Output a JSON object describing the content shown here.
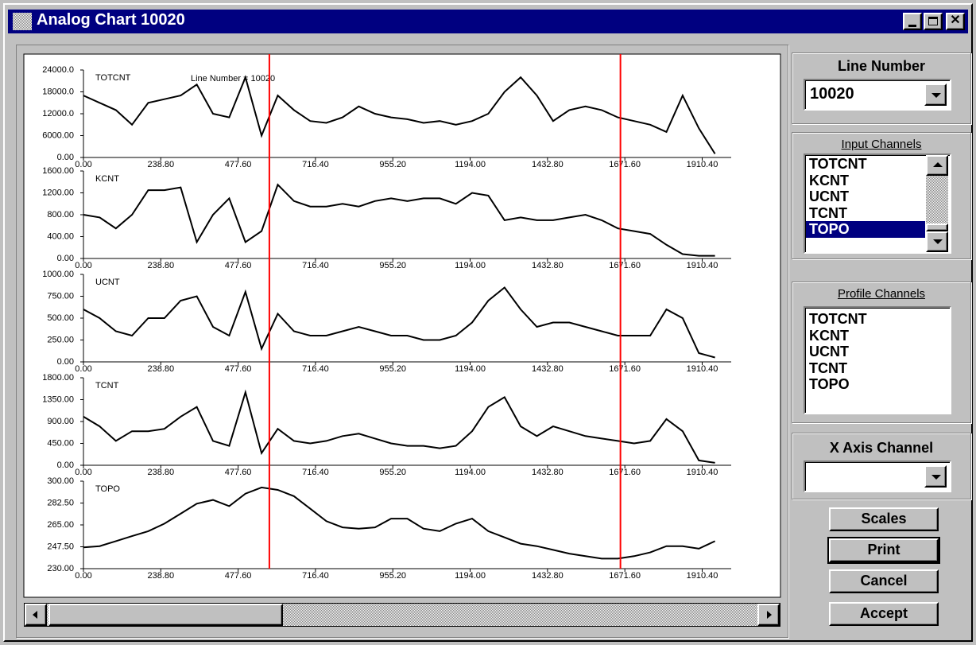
{
  "window": {
    "title": "Analog Chart 10020"
  },
  "annotation": "Line Number = 10020",
  "cursor_x": [
    574,
    1658
  ],
  "cursor_color": "#ff0000",
  "line_number": {
    "label": "Line Number",
    "value": "10020"
  },
  "input_channels": {
    "label": "Input Channels",
    "items": [
      "TOTCNT",
      "KCNT",
      "UCNT",
      "TCNT",
      "TOPO"
    ],
    "selected": 4
  },
  "profile_channels": {
    "label": "Profile Channels",
    "items": [
      "TOTCNT",
      "KCNT",
      "UCNT",
      "TCNT",
      "TOPO"
    ]
  },
  "x_axis_channel": {
    "label": "X Axis Channel"
  },
  "buttons": [
    "Scales",
    "Print",
    "Cancel",
    "Accept"
  ],
  "chart_data": [
    {
      "type": "line",
      "title": "TOTCNT",
      "color": "#000000",
      "x": [
        0,
        50,
        100,
        150,
        200,
        250,
        300,
        350,
        400,
        450,
        500,
        550,
        600,
        650,
        700,
        750,
        800,
        850,
        900,
        950,
        1000,
        1050,
        1100,
        1150,
        1200,
        1250,
        1300,
        1350,
        1400,
        1450,
        1500,
        1550,
        1600,
        1650,
        1700,
        1750,
        1800,
        1850,
        1900,
        1950
      ],
      "values": [
        17000,
        15000,
        13000,
        9000,
        15000,
        16000,
        17000,
        20000,
        12000,
        11000,
        22000,
        6000,
        17000,
        13000,
        10000,
        9500,
        11000,
        14000,
        12000,
        11000,
        10500,
        9500,
        10000,
        9000,
        10000,
        12000,
        18000,
        22000,
        17000,
        10000,
        13000,
        14000,
        13000,
        11000,
        10000,
        9000,
        7000,
        17000,
        8000,
        1000
      ],
      "xlim": [
        0,
        2000
      ],
      "ylim": [
        0,
        24000
      ],
      "xticks": [
        {
          "value": 0,
          "label": "0.00"
        },
        {
          "value": 238.8,
          "label": "238.80"
        },
        {
          "value": 477.6,
          "label": "477.60"
        },
        {
          "value": 716.4,
          "label": "716.40"
        },
        {
          "value": 955.2,
          "label": "955.20"
        },
        {
          "value": 1194,
          "label": "1194.00"
        },
        {
          "value": 1432.8,
          "label": "1432.80"
        },
        {
          "value": 1671.6,
          "label": "1671.60"
        },
        {
          "value": 1910.4,
          "label": "1910.40"
        }
      ],
      "yticks": [
        {
          "value": 0,
          "label": "0.00"
        },
        {
          "value": 6000,
          "label": "6000.00"
        },
        {
          "value": 12000,
          "label": "12000.0"
        },
        {
          "value": 18000,
          "label": "18000.0"
        },
        {
          "value": 24000,
          "label": "24000.0"
        }
      ]
    },
    {
      "type": "line",
      "title": "KCNT",
      "color": "#000000",
      "x": [
        0,
        50,
        100,
        150,
        200,
        250,
        300,
        350,
        400,
        450,
        500,
        550,
        600,
        650,
        700,
        750,
        800,
        850,
        900,
        950,
        1000,
        1050,
        1100,
        1150,
        1200,
        1250,
        1300,
        1350,
        1400,
        1450,
        1500,
        1550,
        1600,
        1650,
        1700,
        1750,
        1800,
        1850,
        1900,
        1950
      ],
      "values": [
        800,
        750,
        550,
        800,
        1250,
        1250,
        1300,
        300,
        800,
        1100,
        300,
        500,
        1350,
        1050,
        950,
        950,
        1000,
        950,
        1050,
        1100,
        1050,
        1100,
        1100,
        1000,
        1200,
        1150,
        700,
        750,
        700,
        700,
        750,
        800,
        700,
        550,
        500,
        450,
        250,
        80,
        50,
        50
      ],
      "xlim": [
        0,
        2000
      ],
      "ylim": [
        0,
        1600
      ],
      "xticks": [
        {
          "value": 0,
          "label": "0.00"
        },
        {
          "value": 238.8,
          "label": "238.80"
        },
        {
          "value": 477.6,
          "label": "477.60"
        },
        {
          "value": 716.4,
          "label": "716.40"
        },
        {
          "value": 955.2,
          "label": "955.20"
        },
        {
          "value": 1194,
          "label": "1194.00"
        },
        {
          "value": 1432.8,
          "label": "1432.80"
        },
        {
          "value": 1671.6,
          "label": "1671.60"
        },
        {
          "value": 1910.4,
          "label": "1910.40"
        }
      ],
      "yticks": [
        {
          "value": 0,
          "label": "0.00"
        },
        {
          "value": 400,
          "label": "400.00"
        },
        {
          "value": 800,
          "label": "800.00"
        },
        {
          "value": 1200,
          "label": "1200.00"
        },
        {
          "value": 1600,
          "label": "1600.00"
        }
      ]
    },
    {
      "type": "line",
      "title": "UCNT",
      "color": "#000000",
      "x": [
        0,
        50,
        100,
        150,
        200,
        250,
        300,
        350,
        400,
        450,
        500,
        550,
        600,
        650,
        700,
        750,
        800,
        850,
        900,
        950,
        1000,
        1050,
        1100,
        1150,
        1200,
        1250,
        1300,
        1350,
        1400,
        1450,
        1500,
        1550,
        1600,
        1650,
        1700,
        1750,
        1800,
        1850,
        1900,
        1950
      ],
      "values": [
        600,
        500,
        350,
        300,
        500,
        500,
        700,
        750,
        400,
        300,
        800,
        150,
        550,
        350,
        300,
        300,
        350,
        400,
        350,
        300,
        300,
        250,
        250,
        300,
        450,
        700,
        850,
        600,
        400,
        450,
        450,
        400,
        350,
        300,
        300,
        300,
        600,
        500,
        100,
        50
      ],
      "xlim": [
        0,
        2000
      ],
      "ylim": [
        0,
        1000
      ],
      "xticks": [
        {
          "value": 0,
          "label": "0.00"
        },
        {
          "value": 238.8,
          "label": "238.80"
        },
        {
          "value": 477.6,
          "label": "477.60"
        },
        {
          "value": 716.4,
          "label": "716.40"
        },
        {
          "value": 955.2,
          "label": "955.20"
        },
        {
          "value": 1194,
          "label": "1194.00"
        },
        {
          "value": 1432.8,
          "label": "1432.80"
        },
        {
          "value": 1671.6,
          "label": "1671.60"
        },
        {
          "value": 1910.4,
          "label": "1910.40"
        }
      ],
      "yticks": [
        {
          "value": 0,
          "label": "0.00"
        },
        {
          "value": 250,
          "label": "250.00"
        },
        {
          "value": 500,
          "label": "500.00"
        },
        {
          "value": 750,
          "label": "750.00"
        },
        {
          "value": 1000,
          "label": "1000.00"
        }
      ]
    },
    {
      "type": "line",
      "title": "TCNT",
      "color": "#000000",
      "x": [
        0,
        50,
        100,
        150,
        200,
        250,
        300,
        350,
        400,
        450,
        500,
        550,
        600,
        650,
        700,
        750,
        800,
        850,
        900,
        950,
        1000,
        1050,
        1100,
        1150,
        1200,
        1250,
        1300,
        1350,
        1400,
        1450,
        1500,
        1550,
        1600,
        1650,
        1700,
        1750,
        1800,
        1850,
        1900,
        1950
      ],
      "values": [
        1000,
        800,
        500,
        700,
        700,
        750,
        1000,
        1200,
        500,
        400,
        1500,
        250,
        750,
        500,
        450,
        500,
        600,
        650,
        550,
        450,
        400,
        400,
        350,
        400,
        700,
        1200,
        1400,
        800,
        600,
        800,
        700,
        600,
        550,
        500,
        450,
        500,
        950,
        700,
        100,
        50
      ],
      "xlim": [
        0,
        2000
      ],
      "ylim": [
        0,
        1800
      ],
      "xticks": [
        {
          "value": 0,
          "label": "0.00"
        },
        {
          "value": 238.8,
          "label": "238.80"
        },
        {
          "value": 477.6,
          "label": "477.60"
        },
        {
          "value": 716.4,
          "label": "716.40"
        },
        {
          "value": 955.2,
          "label": "955.20"
        },
        {
          "value": 1194,
          "label": "1194.00"
        },
        {
          "value": 1432.8,
          "label": "1432.80"
        },
        {
          "value": 1671.6,
          "label": "1671.60"
        },
        {
          "value": 1910.4,
          "label": "1910.40"
        }
      ],
      "yticks": [
        {
          "value": 0,
          "label": "0.00"
        },
        {
          "value": 450,
          "label": "450.00"
        },
        {
          "value": 900,
          "label": "900.00"
        },
        {
          "value": 1350,
          "label": "1350.00"
        },
        {
          "value": 1800,
          "label": "1800.00"
        }
      ]
    },
    {
      "type": "line",
      "title": "TOPO",
      "color": "#000000",
      "x": [
        0,
        50,
        100,
        150,
        200,
        250,
        300,
        350,
        400,
        450,
        500,
        550,
        600,
        650,
        700,
        750,
        800,
        850,
        900,
        950,
        1000,
        1050,
        1100,
        1150,
        1200,
        1250,
        1300,
        1350,
        1400,
        1450,
        1500,
        1550,
        1600,
        1650,
        1700,
        1750,
        1800,
        1850,
        1900,
        1950
      ],
      "values": [
        247,
        248,
        252,
        256,
        260,
        266,
        274,
        282,
        285,
        280,
        290,
        295,
        293,
        288,
        278,
        268,
        263,
        262,
        263,
        270,
        270,
        262,
        260,
        266,
        270,
        260,
        255,
        250,
        248,
        245,
        242,
        240,
        238,
        238,
        240,
        243,
        248,
        248,
        246,
        252
      ],
      "xlim": [
        0,
        2000
      ],
      "ylim": [
        230,
        300
      ],
      "xticks": [
        {
          "value": 0,
          "label": "0.00"
        },
        {
          "value": 238.8,
          "label": "238.80"
        },
        {
          "value": 477.6,
          "label": "477.60"
        },
        {
          "value": 716.4,
          "label": "716.40"
        },
        {
          "value": 955.2,
          "label": "955.20"
        },
        {
          "value": 1194,
          "label": "1194.00"
        },
        {
          "value": 1432.8,
          "label": "1432.80"
        },
        {
          "value": 1671.6,
          "label": "1671.60"
        },
        {
          "value": 1910.4,
          "label": "1910.40"
        }
      ],
      "yticks": [
        {
          "value": 230,
          "label": "230.00"
        },
        {
          "value": 247.5,
          "label": "247.50"
        },
        {
          "value": 265,
          "label": "265.00"
        },
        {
          "value": 282.5,
          "label": "282.50"
        },
        {
          "value": 300,
          "label": "300.00"
        }
      ]
    }
  ]
}
